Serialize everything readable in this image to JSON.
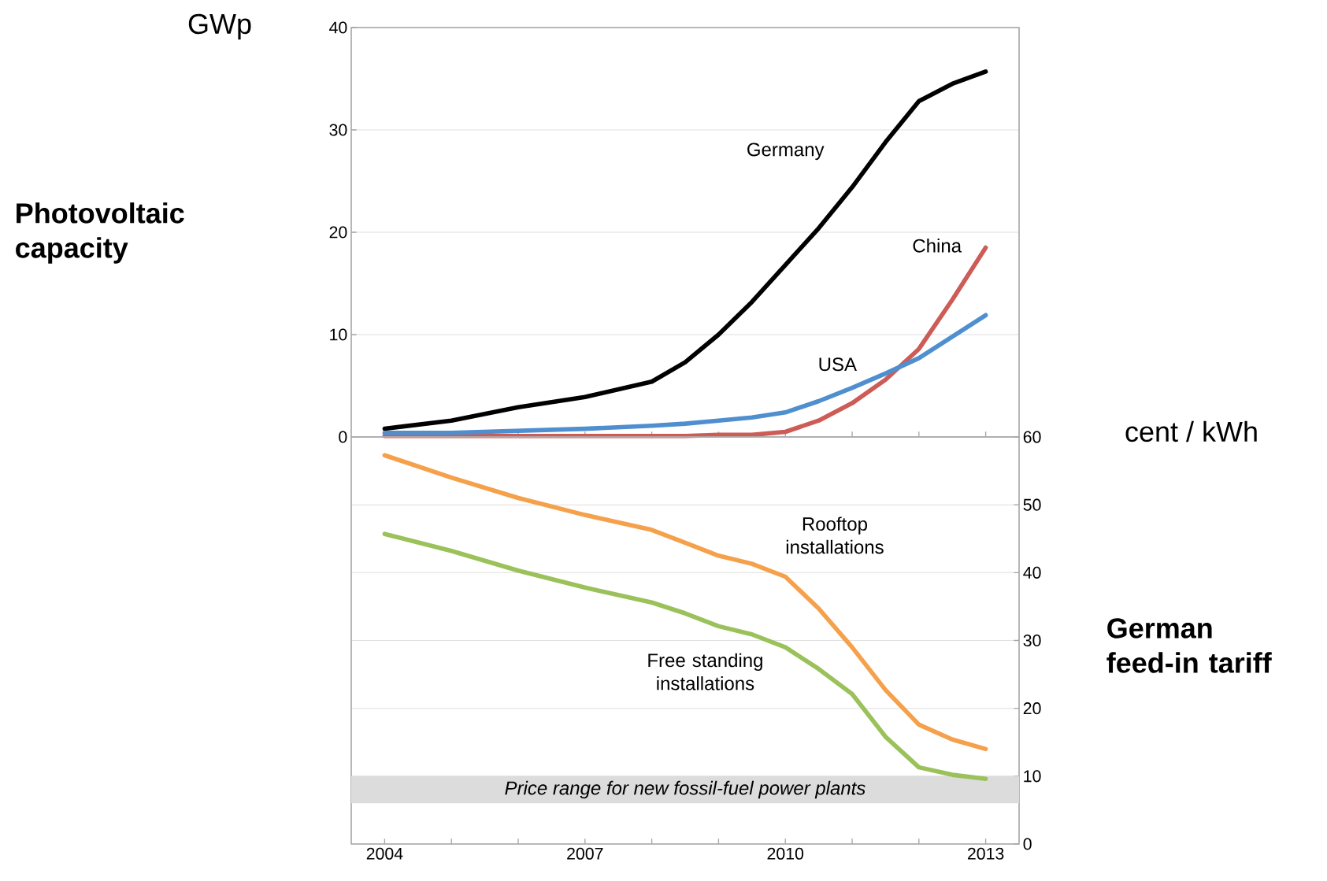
{
  "chart_data": [
    {
      "type": "line",
      "ylabel": "Photovoltaic capacity",
      "annotations": [
        "GWp"
      ],
      "x": [
        2004,
        2005,
        2006,
        2007,
        2008,
        2008.5,
        2009,
        2009.5,
        2010,
        2010.5,
        2011,
        2011.5,
        2012,
        2012.5,
        2013
      ],
      "series": [
        {
          "name": "Germany",
          "color": "#000000",
          "values": [
            0.8,
            1.6,
            2.9,
            3.9,
            5.4,
            7.3,
            10.0,
            13.2,
            16.8,
            20.4,
            24.4,
            28.8,
            32.8,
            34.5,
            35.7
          ]
        },
        {
          "name": "China",
          "color": "#cd5c57",
          "values": [
            0.1,
            0.1,
            0.1,
            0.1,
            0.1,
            0.1,
            0.2,
            0.2,
            0.5,
            1.6,
            3.3,
            5.6,
            8.6,
            13.4,
            18.5
          ]
        },
        {
          "name": "USA",
          "color": "#4f8fd0",
          "values": [
            0.4,
            0.4,
            0.6,
            0.8,
            1.1,
            1.3,
            1.6,
            1.9,
            2.4,
            3.5,
            4.8,
            6.2,
            7.7,
            9.8,
            11.9
          ]
        }
      ],
      "xlim": [
        2003.5,
        2013.5
      ],
      "ylim": [
        0,
        40
      ],
      "yticks": [
        0,
        10,
        20,
        30,
        40
      ],
      "xticks": [
        2004,
        2005,
        2006,
        2007,
        2008,
        2009,
        2010,
        2011,
        2012,
        2013
      ],
      "tick_labels": "y",
      "grid": "y"
    },
    {
      "type": "line",
      "ylabel": "German feed-in tariff",
      "annotations": [
        "cent / kWh"
      ],
      "x": [
        2004,
        2005,
        2006,
        2007,
        2008,
        2008.5,
        2009,
        2009.5,
        2010,
        2010.5,
        2011,
        2011.5,
        2012,
        2012.5,
        2013
      ],
      "series": [
        {
          "name": "Rooftop installations",
          "color": "#f5a04a",
          "values": [
            57.3,
            54.0,
            51.0,
            48.5,
            46.3,
            44.4,
            42.5,
            41.3,
            39.4,
            34.7,
            29.0,
            22.7,
            17.6,
            15.4,
            14.0
          ]
        },
        {
          "name": "Free standing installations",
          "color": "#9bc15a",
          "values": [
            45.7,
            43.2,
            40.3,
            37.8,
            35.6,
            34.0,
            32.1,
            30.9,
            29.0,
            25.8,
            22.1,
            15.8,
            11.3,
            10.2,
            9.6
          ]
        }
      ],
      "bands": [
        {
          "axis": "y",
          "from": 6,
          "to": 10,
          "label": "Price range for new fossil-fuel power plants",
          "color": "#dcdcdc"
        }
      ],
      "xlim": [
        2003.5,
        2013.5
      ],
      "ylim": [
        0,
        60
      ],
      "yticks": [
        0,
        10,
        20,
        30,
        40,
        50,
        60
      ],
      "xticks": [
        2004,
        {
          "value": 2005,
          "label": null
        },
        {
          "value": 2006,
          "label": null
        },
        2007,
        {
          "value": 2008,
          "label": null
        },
        {
          "value": 2009,
          "label": null
        },
        2010,
        {
          "value": 2011,
          "label": null
        },
        {
          "value": 2012,
          "label": null
        },
        2013
      ],
      "grid": "y"
    }
  ]
}
